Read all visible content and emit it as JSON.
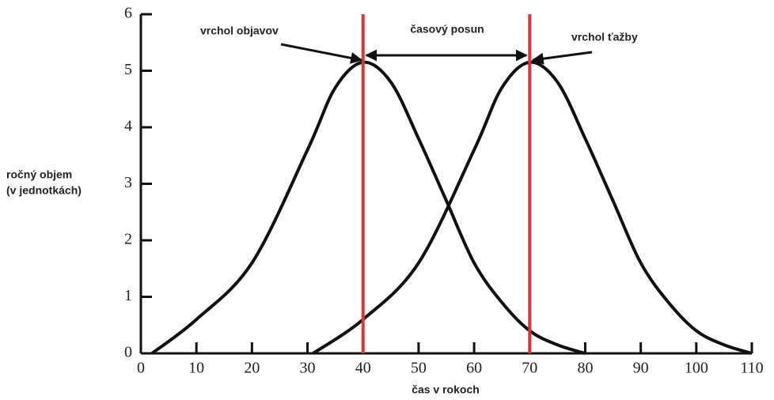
{
  "chart_data": {
    "type": "line",
    "xlabel": "čas v rokoch",
    "ylabel": [
      "ročný objem",
      "(v jednotkách)"
    ],
    "series": [
      {
        "color": "#111111",
        "x": [
          2,
          10,
          20,
          30,
          35,
          40,
          45,
          50,
          55,
          60,
          65,
          70,
          75,
          80
        ],
        "values": [
          0,
          0.6,
          1.6,
          3.6,
          4.7,
          5.15,
          4.8,
          3.8,
          2.7,
          1.6,
          0.9,
          0.4,
          0.15,
          0
        ]
      },
      {
        "color": "#111111",
        "x": [
          31,
          40,
          50,
          60,
          65,
          70,
          75,
          80,
          85,
          90,
          95,
          100,
          105,
          110
        ],
        "values": [
          0,
          0.6,
          1.6,
          3.6,
          4.7,
          5.15,
          4.8,
          3.8,
          2.7,
          1.6,
          0.9,
          0.4,
          0.15,
          0
        ]
      }
    ],
    "vlines": [
      {
        "x": 40,
        "color": "#d33a3a"
      },
      {
        "x": 70,
        "color": "#d33a3a"
      }
    ],
    "annotations": [
      "vrchol objavov",
      "časový posun",
      "vrchol ťažby"
    ],
    "xlim": [
      0,
      110
    ],
    "xticks": [
      0,
      10,
      20,
      30,
      40,
      50,
      60,
      70,
      80,
      90,
      100,
      110
    ],
    "ylim": [
      0,
      6
    ],
    "yticks": [
      0,
      1,
      2,
      3,
      4,
      5,
      6
    ],
    "grid": false
  }
}
